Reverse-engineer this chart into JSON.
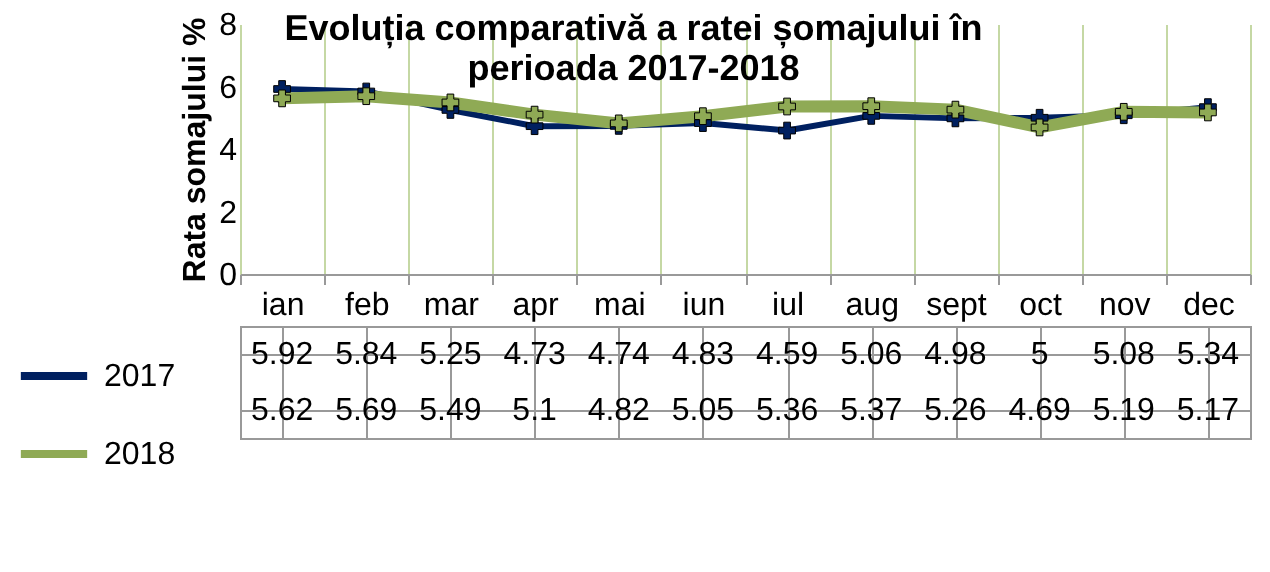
{
  "chart_data": {
    "type": "line",
    "title": "Evoluția comparativă a ratei șomajului în perioada 2017-2018",
    "ylabel": "Rata somajului %",
    "categories": [
      "ian",
      "feb",
      "mar",
      "apr",
      "mai",
      "iun",
      "iul",
      "aug",
      "sept",
      "oct",
      "nov",
      "dec"
    ],
    "series": [
      {
        "name": "2017",
        "color": "#002060",
        "values": [
          5.92,
          5.84,
          5.25,
          4.73,
          4.74,
          4.83,
          4.59,
          5.06,
          4.98,
          5,
          5.08,
          5.34
        ]
      },
      {
        "name": "2018",
        "color": "#8faa55",
        "values": [
          5.62,
          5.69,
          5.49,
          5.1,
          4.82,
          5.05,
          5.36,
          5.37,
          5.26,
          4.69,
          5.19,
          5.17
        ]
      }
    ],
    "ylim": [
      0,
      8
    ],
    "yticks": [
      0,
      2,
      4,
      6,
      8
    ],
    "grid": "x",
    "data_labels": true,
    "legend": "bottom left",
    "marker": "cross",
    "line_style": "solid"
  }
}
